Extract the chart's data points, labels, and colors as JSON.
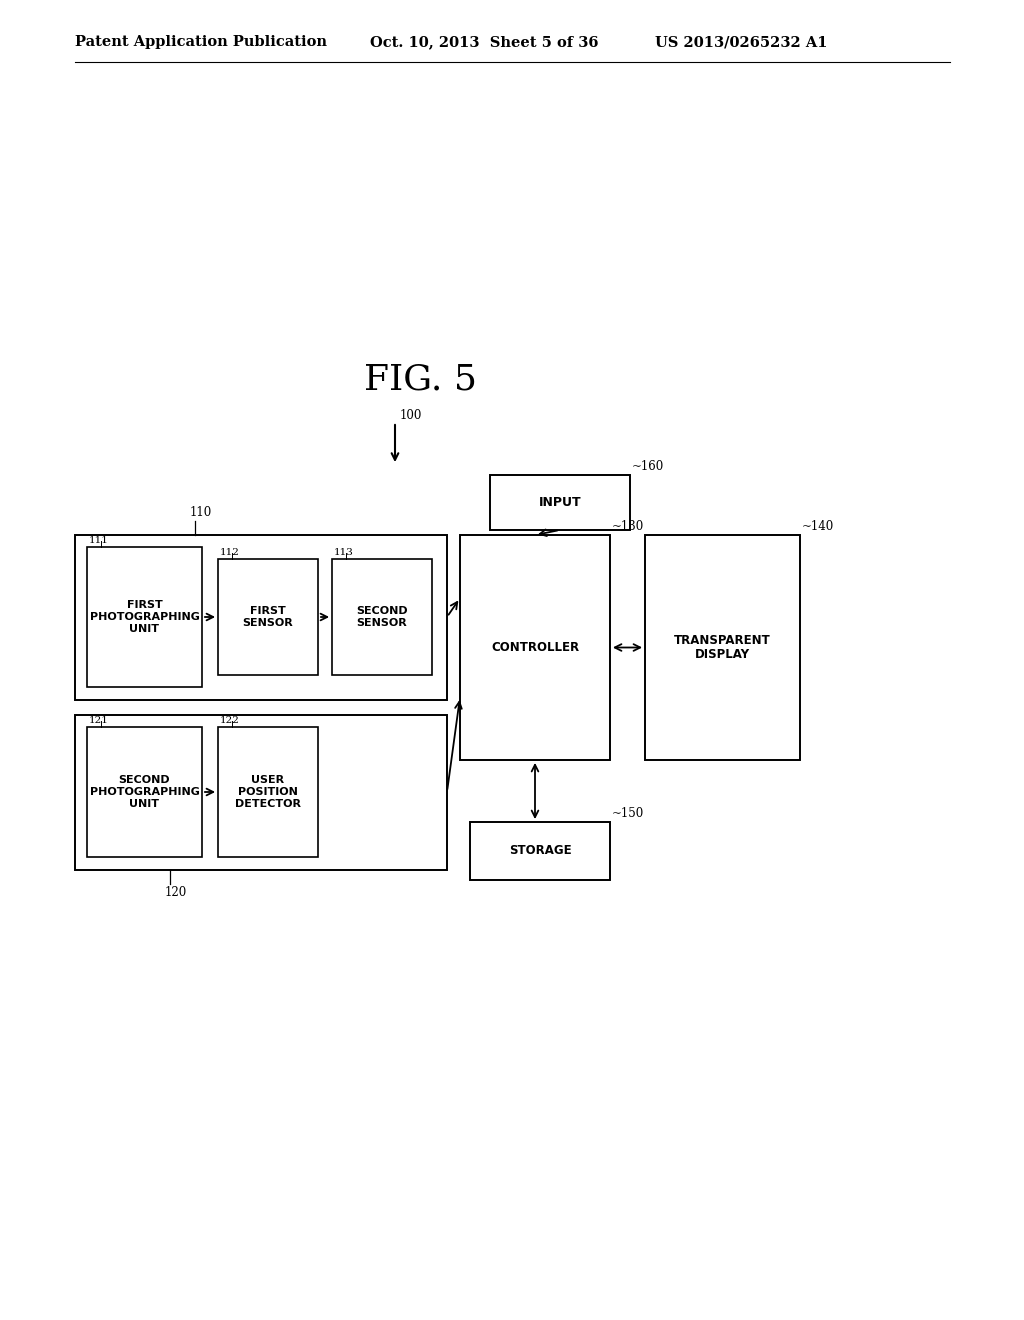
{
  "header_left": "Patent Application Publication",
  "header_mid": "Oct. 10, 2013  Sheet 5 of 36",
  "header_right": "US 2013/0265232 A1",
  "fig_label": "FIG. 5",
  "bg_color": "#ffffff",
  "text_color": "#000000",
  "ref100_label": "100",
  "font_size_header": 10.5,
  "font_size_fig": 26,
  "font_size_ref": 8.5,
  "font_size_box": 8,
  "font_size_box_small": 7.5
}
